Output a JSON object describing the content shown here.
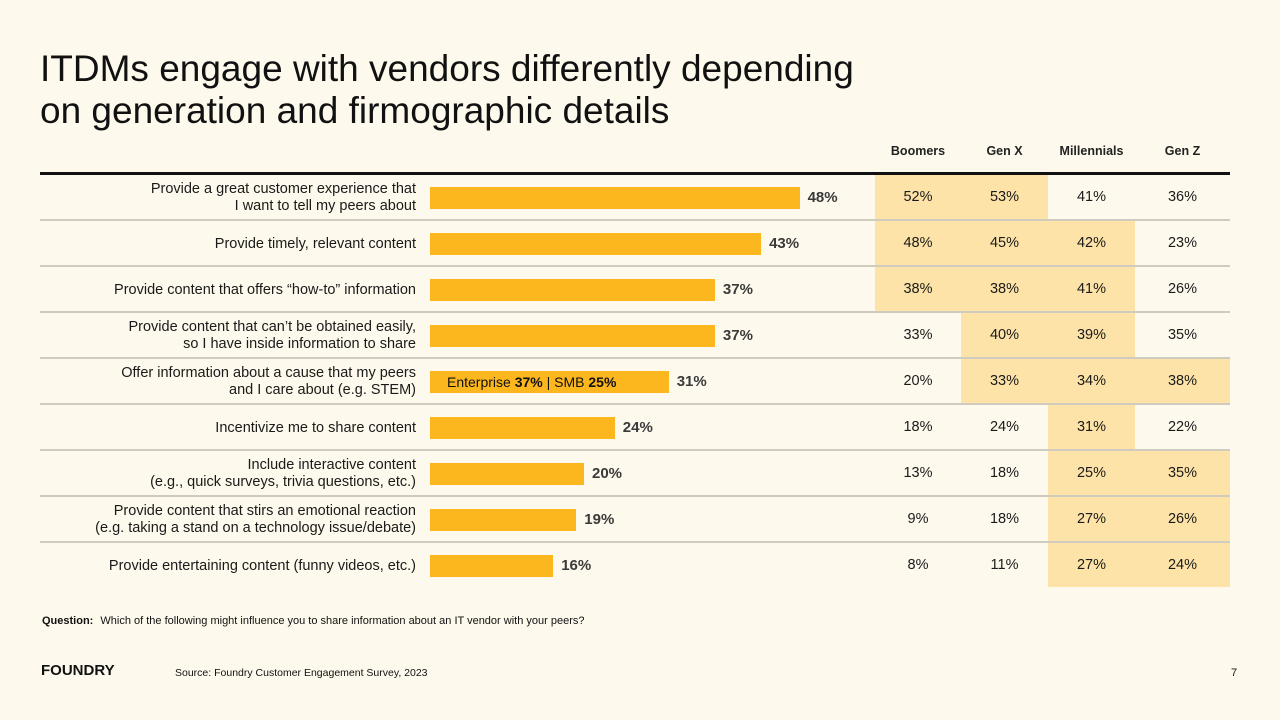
{
  "title_lines": [
    "ITDMs engage with vendors differently depending",
    "on generation and firmographic details"
  ],
  "columns": [
    "Boomers",
    "Gen X",
    "Millennials",
    "Gen Z"
  ],
  "colors": {
    "background": "#FDF9EC",
    "bar": "#FDB71E",
    "highlight": "#FDE3A7",
    "rule": "#111111",
    "divider": "#CFCBBE"
  },
  "bar_note": {
    "row_index": 4,
    "prefix": "Enterprise ",
    "enterprise_value": "37%",
    "separator": " | SMB ",
    "smb_value": "25%"
  },
  "chart_data": {
    "type": "bar",
    "orientation": "horizontal",
    "title": "ITDMs engage with vendors differently depending on generation and firmographic details",
    "xlabel": "",
    "ylabel": "",
    "xlim": [
      0,
      50
    ],
    "grid": false,
    "categories": [
      "Provide a great customer experience that\nI want to tell my peers about",
      "Provide timely, relevant content",
      "Provide content that offers “how-to” information",
      "Provide content that can’t be obtained easily,\nso I have inside information to share",
      "Offer information about a cause that my peers\nand I care about (e.g. STEM)",
      "Incentivize me to share content",
      "Include interactive content\n(e.g., quick surveys, trivia questions, etc.)",
      "Provide content that stirs an emotional reaction\n(e.g. taking a stand on a technology issue/debate)",
      "Provide entertaining content (funny videos, etc.)"
    ],
    "values": [
      48,
      43,
      37,
      37,
      31,
      24,
      20,
      19,
      16
    ],
    "value_labels": [
      "48%",
      "43%",
      "37%",
      "37%",
      "31%",
      "24%",
      "20%",
      "19%",
      "16%"
    ],
    "table": {
      "columns": [
        "Boomers",
        "Gen X",
        "Millennials",
        "Gen Z"
      ],
      "rows": [
        {
          "values": [
            "52%",
            "53%",
            "41%",
            "36%"
          ],
          "highlight": [
            true,
            true,
            false,
            false
          ]
        },
        {
          "values": [
            "48%",
            "45%",
            "42%",
            "23%"
          ],
          "highlight": [
            true,
            true,
            true,
            false
          ]
        },
        {
          "values": [
            "38%",
            "38%",
            "41%",
            "26%"
          ],
          "highlight": [
            true,
            true,
            true,
            false
          ]
        },
        {
          "values": [
            "33%",
            "40%",
            "39%",
            "35%"
          ],
          "highlight": [
            false,
            true,
            true,
            false
          ]
        },
        {
          "values": [
            "20%",
            "33%",
            "34%",
            "38%"
          ],
          "highlight": [
            false,
            true,
            true,
            true
          ]
        },
        {
          "values": [
            "18%",
            "24%",
            "31%",
            "22%"
          ],
          "highlight": [
            false,
            false,
            true,
            false
          ]
        },
        {
          "values": [
            "13%",
            "18%",
            "25%",
            "35%"
          ],
          "highlight": [
            false,
            false,
            true,
            true
          ]
        },
        {
          "values": [
            "9%",
            "18%",
            "27%",
            "26%"
          ],
          "highlight": [
            false,
            false,
            true,
            true
          ]
        },
        {
          "values": [
            "8%",
            "11%",
            "27%",
            "24%"
          ],
          "highlight": [
            false,
            false,
            true,
            true
          ]
        }
      ]
    },
    "annotations": [
      "Enterprise 37% | SMB 25%"
    ]
  },
  "footer": {
    "question_label": "Question:",
    "question_text": "Which of the following might influence you to share information about an IT vendor with your peers?",
    "logo": "FOUNDRY",
    "source": "Source: Foundry Customer Engagement Survey, 2023",
    "page_number": "7"
  }
}
